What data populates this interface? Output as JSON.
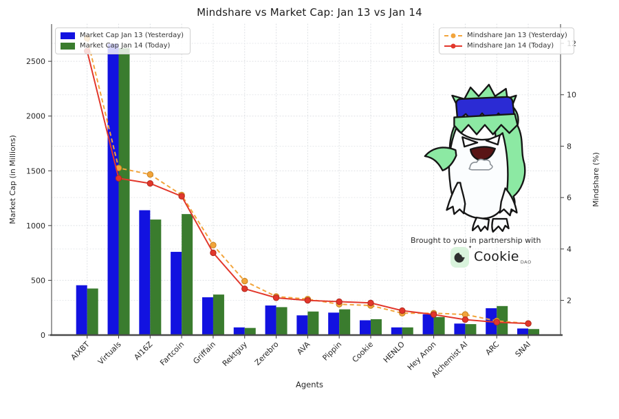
{
  "title": "Mindshare vs Market Cap: Jan 13 vs Jan 14",
  "chart_data": {
    "type": "bar",
    "subtype": "grouped bars with two overlay line series (dual y-axis)",
    "categories": [
      "AIXBT",
      "Virtuals",
      "AI16Z",
      "Fartcoin",
      "Griffain",
      "Rektguy",
      "Zerebro",
      "AVA",
      "Pippin",
      "Cookie",
      "HENLO",
      "Hey Anon",
      "Alchemist AI",
      "ARC",
      "SNAI"
    ],
    "bar_series": [
      {
        "name": "Market Cap Jan 13 (Yesterday)",
        "color": "#1212e0",
        "values": [
          455,
          2660,
          1140,
          760,
          345,
          70,
          270,
          180,
          205,
          135,
          70,
          190,
          105,
          245,
          60
        ]
      },
      {
        "name": "Market Cap Jan 14 (Today)",
        "color": "#3a7c2e",
        "values": [
          425,
          2620,
          1055,
          1105,
          370,
          65,
          255,
          215,
          235,
          145,
          70,
          165,
          100,
          265,
          55
        ]
      }
    ],
    "line_series": [
      {
        "name": "Mindshare Jan 13 (Yesterday)",
        "color": "#f2a43b",
        "style": "dashed",
        "values": [
          12.2,
          7.15,
          6.9,
          6.1,
          4.15,
          2.75,
          2.15,
          2.05,
          1.85,
          1.8,
          1.5,
          1.5,
          1.45,
          1.2,
          1.1
        ]
      },
      {
        "name": "Mindshare Jan 14 (Today)",
        "color": "#e2372b",
        "style": "solid",
        "values": [
          11.7,
          6.75,
          6.55,
          6.05,
          3.85,
          2.45,
          2.1,
          2.0,
          1.95,
          1.9,
          1.6,
          1.45,
          1.25,
          1.15,
          1.1
        ]
      }
    ],
    "xlabel": "Agents",
    "ylabel_left": "Market Cap (in Millions)",
    "ylabel_right": "Mindshare (%)",
    "yticks_left": [
      0,
      500,
      1000,
      1500,
      2000,
      2500
    ],
    "yticks_right": [
      2,
      4,
      6,
      8,
      10,
      12
    ],
    "ylim_left": [
      0,
      2840
    ],
    "ylim_right": [
      0.65,
      12.75
    ],
    "grid": true,
    "legend_positions": [
      "upper left",
      "upper right"
    ]
  },
  "partnership": {
    "text": "Brought to you in partnership with",
    "logo_name": "Cookie",
    "logo_sub": "DAO",
    "logo_tile_color": "#d9f3dc",
    "logo_glyph_color": "#2e2e2e"
  }
}
